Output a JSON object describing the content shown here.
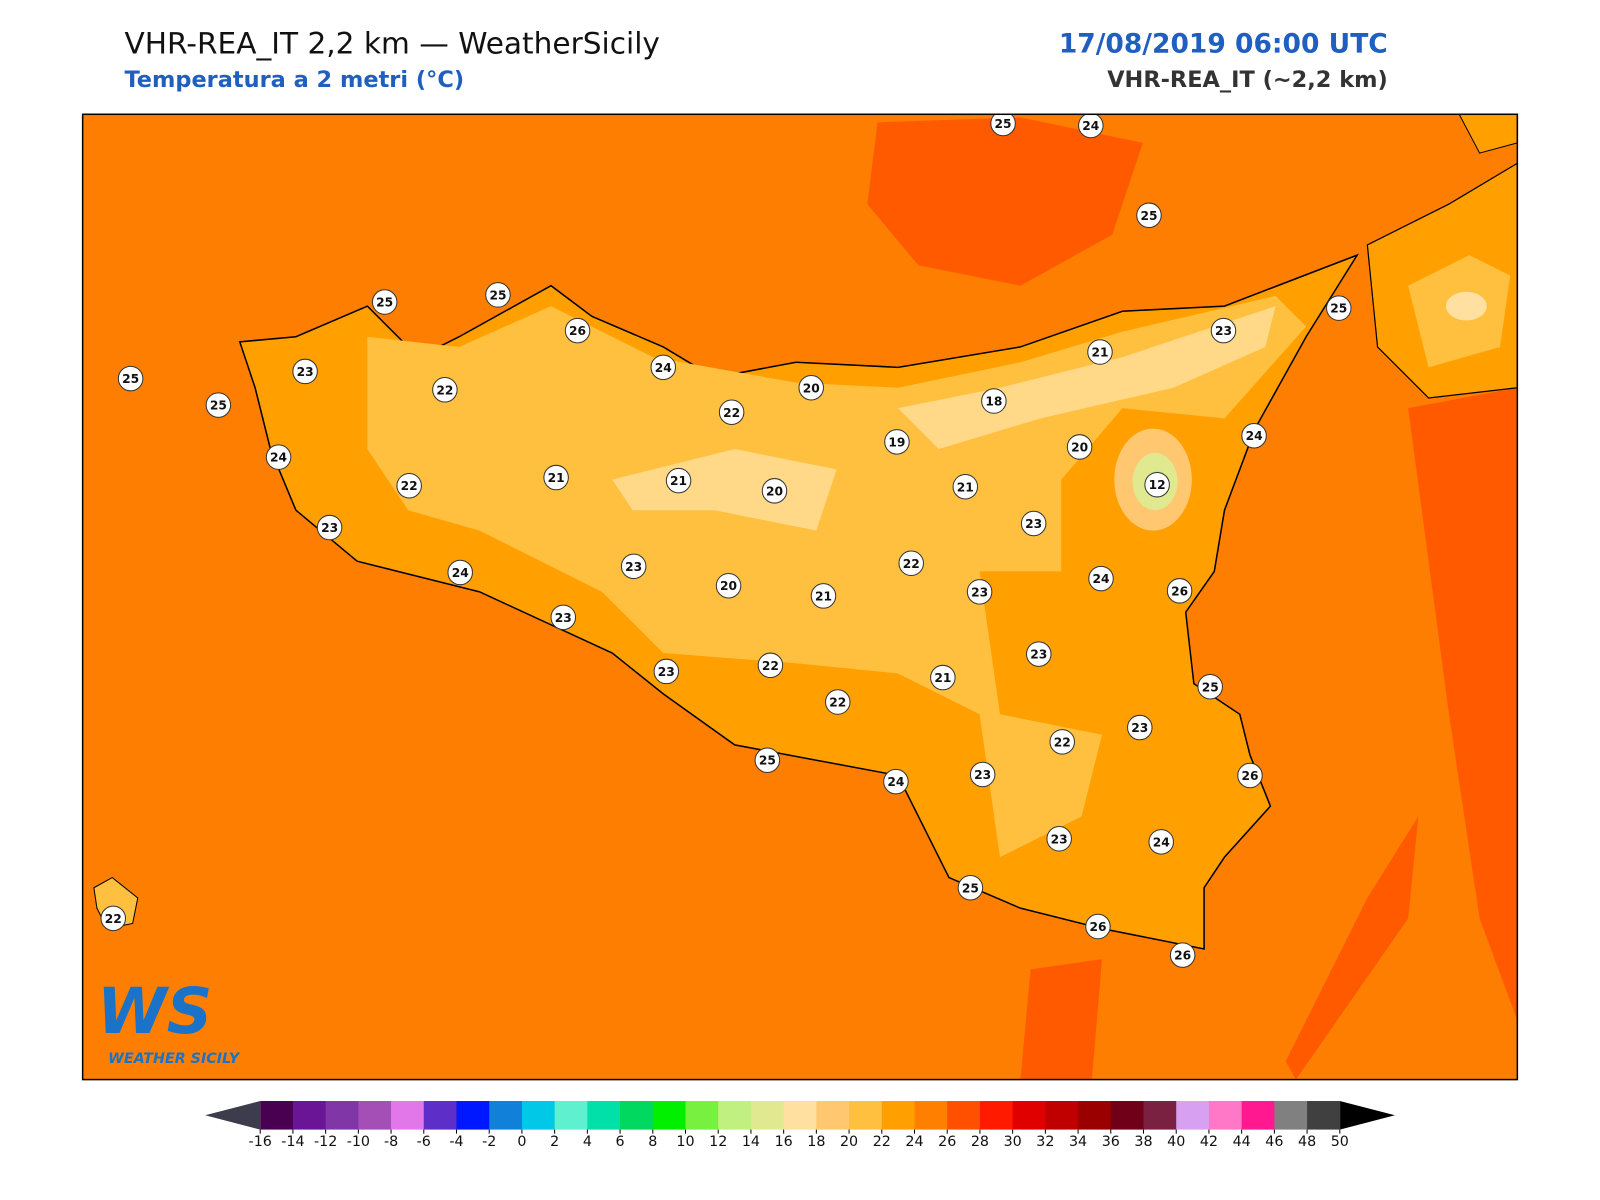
{
  "header": {
    "title": "VHR-REA_IT 2,2 km — WeatherSicily",
    "subtitle": "Temperatura a 2 metri (°C)",
    "datetime": "17/08/2019 06:00 UTC",
    "model": "VHR-REA_IT (~2,2 km)"
  },
  "map": {
    "stations": [
      25,
      24,
      25,
      25,
      25,
      26,
      24,
      23,
      22,
      25,
      25,
      22,
      20,
      25,
      23,
      21,
      18,
      19,
      20,
      24,
      12,
      24,
      22,
      21,
      21,
      20,
      21,
      23,
      23,
      24,
      23,
      20,
      21,
      22,
      23,
      24,
      26,
      23,
      23,
      23,
      22,
      21,
      22,
      25,
      23,
      22,
      25,
      24,
      23,
      26,
      23,
      24,
      25,
      26,
      26,
      22
    ]
  },
  "logo": {
    "mark": "WS",
    "name": "WEATHER SICILY"
  },
  "colorbar": {
    "ticks": [
      -16,
      -14,
      -12,
      -10,
      -8,
      -6,
      -4,
      -2,
      0,
      2,
      4,
      6,
      8,
      10,
      12,
      14,
      16,
      18,
      20,
      22,
      24,
      26,
      28,
      30,
      32,
      34,
      36,
      38,
      40,
      42,
      44,
      46,
      48,
      50
    ],
    "colors": [
      "#4a0050",
      "#6a1596",
      "#8136a8",
      "#a34fb6",
      "#e277ea",
      "#5e2ec8",
      "#0018ff",
      "#1080d8",
      "#00c8e6",
      "#5ff0d0",
      "#00e0a8",
      "#00d860",
      "#00f000",
      "#78f040",
      "#c0f080",
      "#e0e890",
      "#ffe0a0",
      "#ffc870",
      "#ffc040",
      "#ffa000",
      "#ff8000",
      "#ff5000",
      "#ff1a00",
      "#e00000",
      "#c00000",
      "#9a0000",
      "#700018",
      "#7a2040",
      "#d8a0f0",
      "#ff78c8",
      "#ff1890",
      "#808080",
      "#404040"
    ],
    "under_color": "#3c3c4c",
    "over_color": "#000000"
  }
}
